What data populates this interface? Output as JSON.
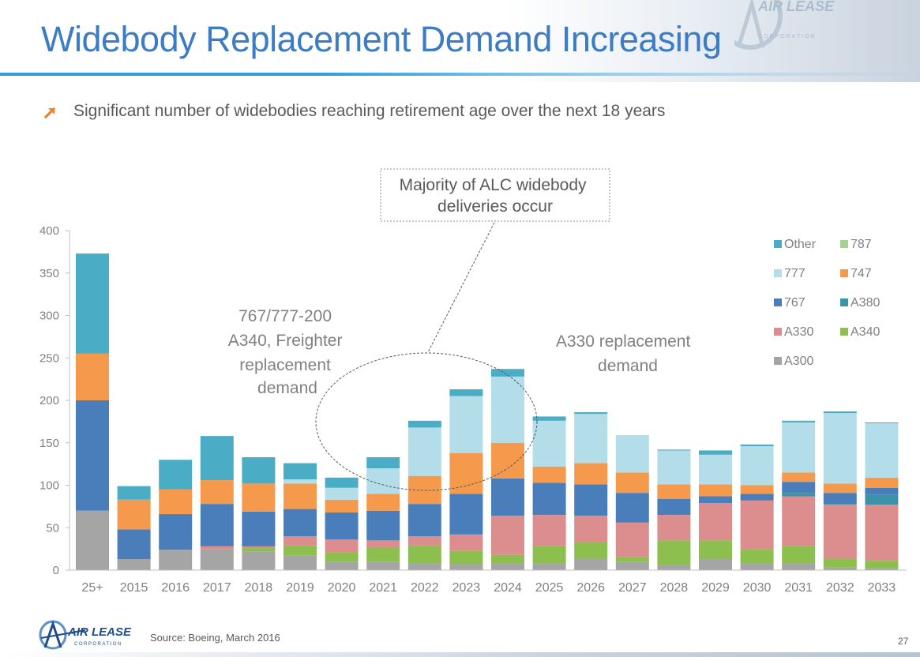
{
  "page": {
    "title": "Widebody Replacement Demand Increasing",
    "bullet": "Significant number of widebodies reaching retirement age over the next 18 years",
    "source": "Source: Boeing, March 2016",
    "page_number": "27",
    "logo_text": "AIR LEASE",
    "logo_subtext": "CORPORATION"
  },
  "colors": {
    "title": "#3b7cc4",
    "accent_line": "#2e9fd9",
    "bullet_arrow": "#f0812f"
  },
  "chart_data": {
    "type": "bar",
    "stacked": true,
    "categories": [
      "25+",
      "2015",
      "2016",
      "2017",
      "2018",
      "2019",
      "2020",
      "2021",
      "2022",
      "2023",
      "2024",
      "2025",
      "2026",
      "2027",
      "2028",
      "2029",
      "2030",
      "2031",
      "2032",
      "2033"
    ],
    "ylim": [
      0,
      400
    ],
    "yticks": [
      0,
      50,
      100,
      150,
      200,
      250,
      300,
      350,
      400
    ],
    "grid": false,
    "legend_position": "right",
    "series": [
      {
        "name": "A300",
        "color": "#a5a5a5",
        "values": [
          70,
          13,
          24,
          25,
          22,
          17,
          10,
          10,
          8,
          7,
          8,
          8,
          14,
          10,
          6,
          13,
          8,
          8,
          3,
          2
        ]
      },
      {
        "name": "A340",
        "color": "#8dbf4f",
        "values": [
          0,
          0,
          0,
          0,
          4,
          12,
          11,
          17,
          21,
          16,
          10,
          20,
          19,
          5,
          29,
          22,
          17,
          20,
          10,
          9
        ]
      },
      {
        "name": "A330",
        "color": "#dc8e8e",
        "values": [
          0,
          0,
          0,
          3,
          2,
          11,
          15,
          8,
          11,
          19,
          46,
          37,
          31,
          41,
          30,
          44,
          57,
          59,
          64,
          66
        ]
      },
      {
        "name": "A380",
        "color": "#3a93a8",
        "values": [
          0,
          0,
          0,
          0,
          0,
          0,
          0,
          0,
          0,
          0,
          0,
          0,
          0,
          0,
          0,
          0,
          0,
          4,
          1,
          12
        ]
      },
      {
        "name": "767",
        "color": "#4a7ebb",
        "values": [
          130,
          35,
          42,
          50,
          41,
          32,
          32,
          35,
          38,
          48,
          44,
          38,
          37,
          35,
          19,
          8,
          8,
          13,
          13,
          8
        ]
      },
      {
        "name": "747",
        "color": "#f59a4c",
        "values": [
          55,
          35,
          29,
          28,
          33,
          30,
          15,
          20,
          33,
          48,
          42,
          19,
          25,
          24,
          17,
          14,
          10,
          11,
          11,
          12
        ]
      },
      {
        "name": "777",
        "color": "#b3dde8",
        "values": [
          0,
          0,
          0,
          0,
          0,
          5,
          14,
          30,
          57,
          67,
          78,
          54,
          58,
          44,
          40,
          35,
          46,
          59,
          83,
          64
        ]
      },
      {
        "name": "787",
        "color": "#a9d18e",
        "values": [
          0,
          0,
          0,
          0,
          0,
          0,
          0,
          0,
          0,
          0,
          0,
          0,
          0,
          0,
          0,
          0,
          0,
          0,
          0,
          0
        ]
      },
      {
        "name": "Other",
        "color": "#4bacc6",
        "values": [
          118,
          16,
          35,
          52,
          31,
          19,
          12,
          13,
          8,
          8,
          9,
          5,
          2,
          0,
          1,
          5,
          2,
          2,
          2,
          1
        ]
      }
    ],
    "legend_order": [
      "Other",
      "787",
      "777",
      "747",
      "767",
      "A380",
      "A330",
      "A340",
      "A300"
    ],
    "annotations": {
      "callout_box": "Majority of ALC widebody deliveries occur",
      "note_left": [
        "767/777-200",
        "A340, Freighter",
        "replacement",
        "demand"
      ],
      "note_right": [
        "A330 replacement",
        "demand"
      ]
    }
  }
}
